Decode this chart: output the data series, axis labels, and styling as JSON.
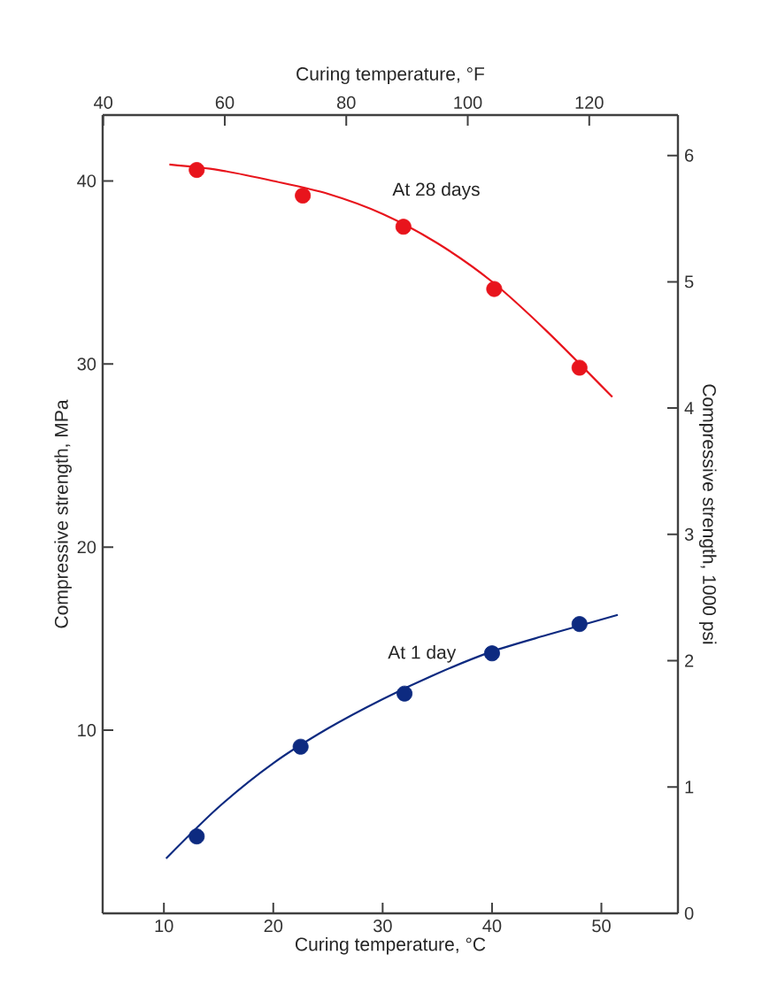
{
  "chart_data": {
    "type": "scatter",
    "xlabel": "Curing temperature, °C",
    "x2label": "Curing temperature, °F",
    "ylabel": "Compressive strength, MPa",
    "y2label": "Compressive strength, 1000 psi",
    "xlim": [
      4.4,
      57
    ],
    "xticks": [
      10,
      20,
      30,
      40,
      50
    ],
    "x2lim": [
      39.9,
      134.6
    ],
    "x2ticks": [
      40,
      60,
      80,
      100,
      120
    ],
    "ylim": [
      0,
      43.6
    ],
    "yticks": [
      10,
      20,
      30,
      40
    ],
    "y2lim": [
      0,
      6.32
    ],
    "y2ticks": [
      0,
      1,
      2,
      3,
      4,
      5,
      6
    ],
    "series": [
      {
        "type": "line",
        "marker": "none",
        "color": "#e8141c",
        "x": [
          10.5,
          15,
          20,
          25,
          30,
          35,
          40,
          45,
          51
        ],
        "values": [
          40.9,
          40.6,
          40.0,
          39.3,
          38.2,
          36.6,
          34.5,
          31.8,
          28.2
        ]
      },
      {
        "type": "line",
        "marker": "none",
        "color": "#0d2a80",
        "x": [
          10.2,
          15,
          20,
          25,
          30,
          35,
          40,
          45,
          51.5
        ],
        "values": [
          3.0,
          5.8,
          8.2,
          10.1,
          11.7,
          13.1,
          14.3,
          15.2,
          16.3
        ]
      },
      {
        "marker": "circle",
        "color": "#e8141c",
        "x": [
          13,
          22.7,
          31.9,
          40.2,
          48
        ],
        "values": [
          40.6,
          39.2,
          37.5,
          34.1,
          29.8
        ]
      },
      {
        "marker": "circle",
        "color": "#0d2a80",
        "x": [
          13,
          22.5,
          32,
          40,
          48
        ],
        "values": [
          4.2,
          9.1,
          12.0,
          14.2,
          15.8
        ]
      }
    ],
    "annotations": [
      "At 28 days",
      "At 1 day"
    ]
  }
}
